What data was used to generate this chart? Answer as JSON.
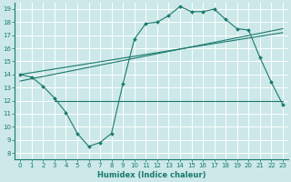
{
  "xlabel": "Humidex (Indice chaleur)",
  "bg_color": "#cce8e8",
  "grid_color": "#ffffff",
  "grid_minor_color": "#ddeaea",
  "line_color": "#1a7a6e",
  "xlim": [
    -0.5,
    23.5
  ],
  "ylim": [
    7.5,
    19.5
  ],
  "xticks": [
    0,
    1,
    2,
    3,
    4,
    5,
    6,
    7,
    8,
    9,
    10,
    11,
    12,
    13,
    14,
    15,
    16,
    17,
    18,
    19,
    20,
    21,
    22,
    23
  ],
  "yticks": [
    8,
    9,
    10,
    11,
    12,
    13,
    14,
    15,
    16,
    17,
    18,
    19
  ],
  "series1_x": [
    0,
    1,
    2,
    3,
    4,
    5,
    6,
    7,
    8,
    9,
    10,
    11,
    12,
    13,
    14,
    15,
    16,
    17,
    18,
    19,
    20,
    21,
    22,
    23
  ],
  "series1_y": [
    14.0,
    13.8,
    13.1,
    12.2,
    11.1,
    9.5,
    8.5,
    8.8,
    9.5,
    13.3,
    16.7,
    17.9,
    18.0,
    18.5,
    19.2,
    18.8,
    18.8,
    19.0,
    18.2,
    17.5,
    17.4,
    15.3,
    13.4,
    11.7
  ],
  "series2_x": [
    0,
    23
  ],
  "series2_y": [
    14.0,
    17.2
  ],
  "series3_x": [
    0,
    23
  ],
  "series3_y": [
    13.5,
    17.5
  ],
  "hline_y": 12.0,
  "hline_xstart": 3,
  "hline_xend": 23
}
